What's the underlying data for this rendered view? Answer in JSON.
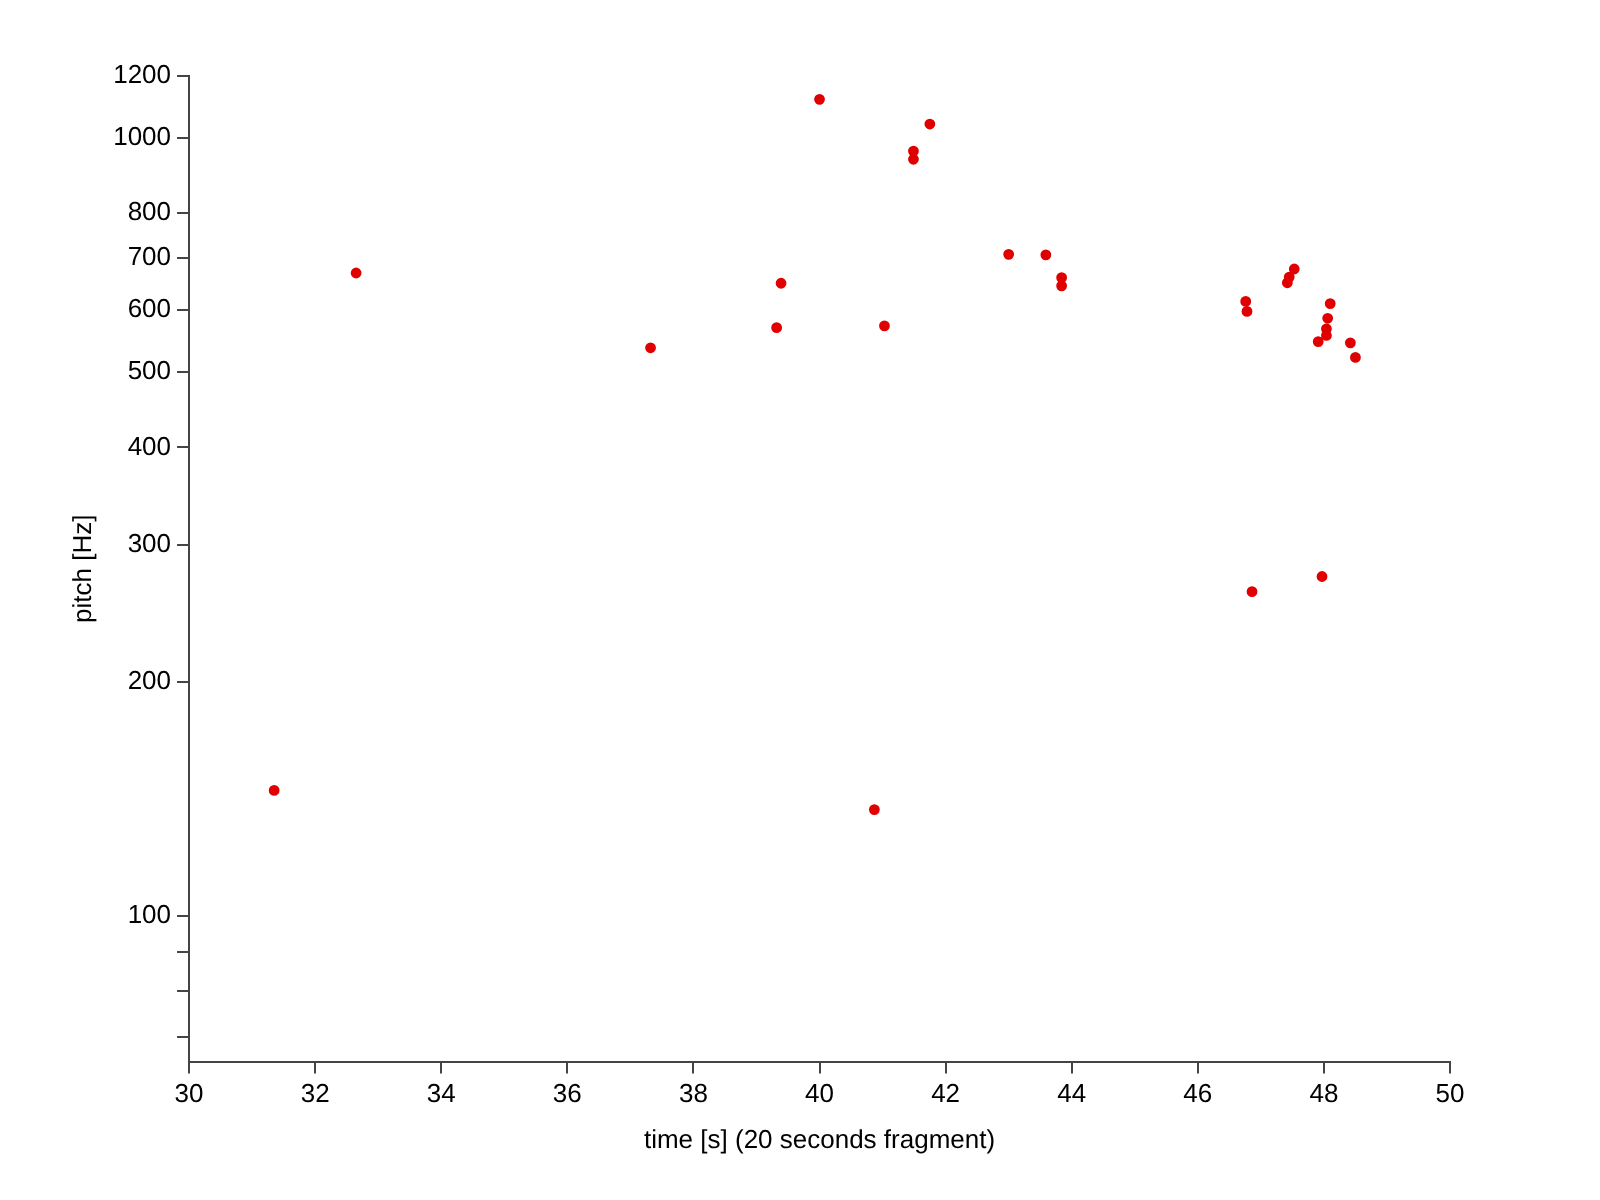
{
  "chart_data": {
    "type": "scatter",
    "xlabel": "time [s] (20 seconds fragment)",
    "ylabel": "pitch [Hz]",
    "xlim": [
      30,
      50
    ],
    "xticks": [
      30,
      32,
      34,
      36,
      38,
      40,
      42,
      44,
      46,
      48,
      50
    ],
    "ylim": [
      65,
      1200
    ],
    "yticks": [
      {
        "value": 70,
        "label": null
      },
      {
        "value": 80,
        "label": null
      },
      {
        "value": 90,
        "label": null
      },
      100,
      200,
      300,
      400,
      500,
      600,
      700,
      800,
      1000,
      1200
    ],
    "log": "y",
    "grid": false,
    "legend": false,
    "marker": "circle",
    "series": [
      {
        "color": "#e00000",
        "x": [
          31.35,
          32.65,
          37.32,
          39.32,
          39.39,
          40.0,
          40.87,
          41.03,
          41.75,
          41.49,
          41.49,
          43.0,
          43.59,
          43.84,
          43.84,
          46.76,
          46.78,
          47.42,
          47.45,
          47.53,
          48.1,
          48.06,
          48.04,
          48.04,
          47.91,
          48.42,
          48.5,
          46.86,
          47.97
        ],
        "values": [
          145,
          670,
          537,
          570,
          650,
          1120,
          137,
          573,
          1041,
          961,
          938,
          708,
          707,
          661,
          645,
          616,
          598,
          651,
          662,
          678,
          612,
          586,
          568,
          557,
          547,
          545,
          522,
          261,
          273
        ]
      }
    ]
  }
}
